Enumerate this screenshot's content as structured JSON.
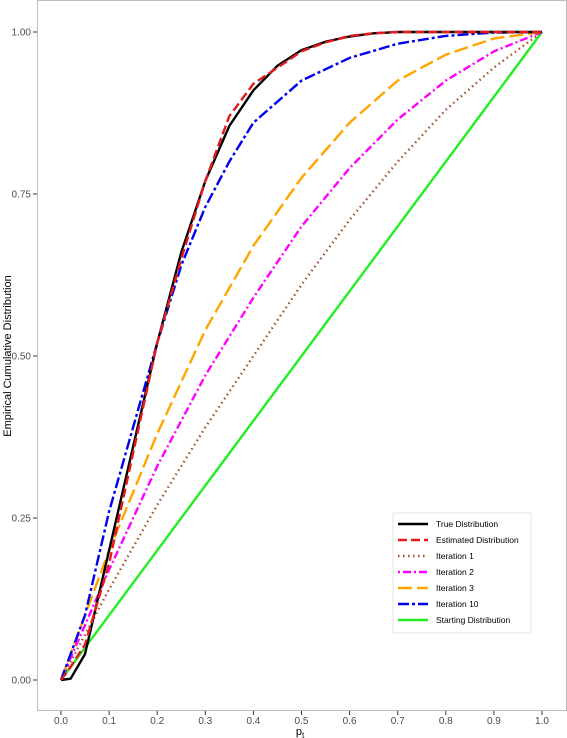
{
  "chart_data": {
    "type": "line",
    "title": "",
    "xlabel": "p",
    "xlabel_subscript": "t",
    "ylabel": "Empirical Cumulative Distribution",
    "xlim": [
      0.0,
      1.0
    ],
    "ylim": [
      0.0,
      1.0
    ],
    "x_ticks": [
      "0.0",
      "0.1",
      "0.2",
      "0.3",
      "0.4",
      "0.5",
      "0.6",
      "0.7",
      "0.8",
      "0.9",
      "1.0"
    ],
    "y_ticks": [
      "0.00",
      "0.25",
      "0.50",
      "0.75",
      "1.00"
    ],
    "grid": false,
    "legend_position": "bottom-right",
    "series": [
      {
        "name": "True Distribution",
        "color": "#000000",
        "dash": "solid",
        "points": [
          [
            0.0,
            0.0
          ],
          [
            0.02,
            0.002
          ],
          [
            0.05,
            0.04
          ],
          [
            0.1,
            0.2
          ],
          [
            0.15,
            0.36
          ],
          [
            0.2,
            0.52
          ],
          [
            0.25,
            0.66
          ],
          [
            0.3,
            0.77
          ],
          [
            0.35,
            0.855
          ],
          [
            0.4,
            0.91
          ],
          [
            0.45,
            0.948
          ],
          [
            0.5,
            0.972
          ],
          [
            0.55,
            0.985
          ],
          [
            0.6,
            0.993
          ],
          [
            0.65,
            0.998
          ],
          [
            0.7,
            1.0
          ],
          [
            1.0,
            1.0
          ]
        ]
      },
      {
        "name": "Estimated Distribution",
        "color": "#e41a1c",
        "dash": "dashed",
        "points": [
          [
            0.0,
            0.0
          ],
          [
            0.02,
            0.02
          ],
          [
            0.05,
            0.055
          ],
          [
            0.1,
            0.18
          ],
          [
            0.15,
            0.35
          ],
          [
            0.2,
            0.52
          ],
          [
            0.25,
            0.65
          ],
          [
            0.3,
            0.77
          ],
          [
            0.35,
            0.87
          ],
          [
            0.4,
            0.92
          ],
          [
            0.45,
            0.945
          ],
          [
            0.5,
            0.97
          ],
          [
            0.55,
            0.984
          ],
          [
            0.6,
            0.994
          ],
          [
            0.65,
            0.998
          ],
          [
            0.7,
            1.0
          ],
          [
            1.0,
            1.0
          ]
        ]
      },
      {
        "name": "Iteration 1",
        "color": "#a0522d",
        "dash": "dotted",
        "points": [
          [
            0.0,
            0.0
          ],
          [
            0.1,
            0.14
          ],
          [
            0.2,
            0.27
          ],
          [
            0.3,
            0.39
          ],
          [
            0.4,
            0.5
          ],
          [
            0.5,
            0.61
          ],
          [
            0.6,
            0.71
          ],
          [
            0.7,
            0.8
          ],
          [
            0.8,
            0.88
          ],
          [
            0.9,
            0.945
          ],
          [
            1.0,
            1.0
          ]
        ]
      },
      {
        "name": "Iteration 2",
        "color": "#ff00ff",
        "dash": "dotdash",
        "points": [
          [
            0.0,
            0.0
          ],
          [
            0.1,
            0.17
          ],
          [
            0.2,
            0.33
          ],
          [
            0.3,
            0.47
          ],
          [
            0.4,
            0.59
          ],
          [
            0.5,
            0.7
          ],
          [
            0.6,
            0.79
          ],
          [
            0.7,
            0.865
          ],
          [
            0.8,
            0.925
          ],
          [
            0.9,
            0.97
          ],
          [
            1.0,
            1.0
          ]
        ]
      },
      {
        "name": "Iteration 3",
        "color": "#ffa500",
        "dash": "longdash",
        "points": [
          [
            0.0,
            0.0
          ],
          [
            0.1,
            0.2
          ],
          [
            0.2,
            0.38
          ],
          [
            0.3,
            0.54
          ],
          [
            0.4,
            0.67
          ],
          [
            0.5,
            0.775
          ],
          [
            0.6,
            0.86
          ],
          [
            0.7,
            0.925
          ],
          [
            0.8,
            0.965
          ],
          [
            0.9,
            0.99
          ],
          [
            1.0,
            1.0
          ]
        ]
      },
      {
        "name": "Iteration 10",
        "color": "#0000ee",
        "dash": "twodash",
        "points": [
          [
            0.0,
            0.0
          ],
          [
            0.05,
            0.1
          ],
          [
            0.1,
            0.26
          ],
          [
            0.15,
            0.39
          ],
          [
            0.2,
            0.52
          ],
          [
            0.25,
            0.64
          ],
          [
            0.3,
            0.73
          ],
          [
            0.35,
            0.8
          ],
          [
            0.4,
            0.86
          ],
          [
            0.5,
            0.925
          ],
          [
            0.6,
            0.96
          ],
          [
            0.7,
            0.982
          ],
          [
            0.8,
            0.994
          ],
          [
            0.9,
            0.999
          ],
          [
            1.0,
            1.0
          ]
        ]
      },
      {
        "name": "Starting Distribution",
        "color": "#22ee22",
        "dash": "solid",
        "points": [
          [
            0.0,
            0.0
          ],
          [
            1.0,
            1.0
          ]
        ]
      }
    ]
  }
}
